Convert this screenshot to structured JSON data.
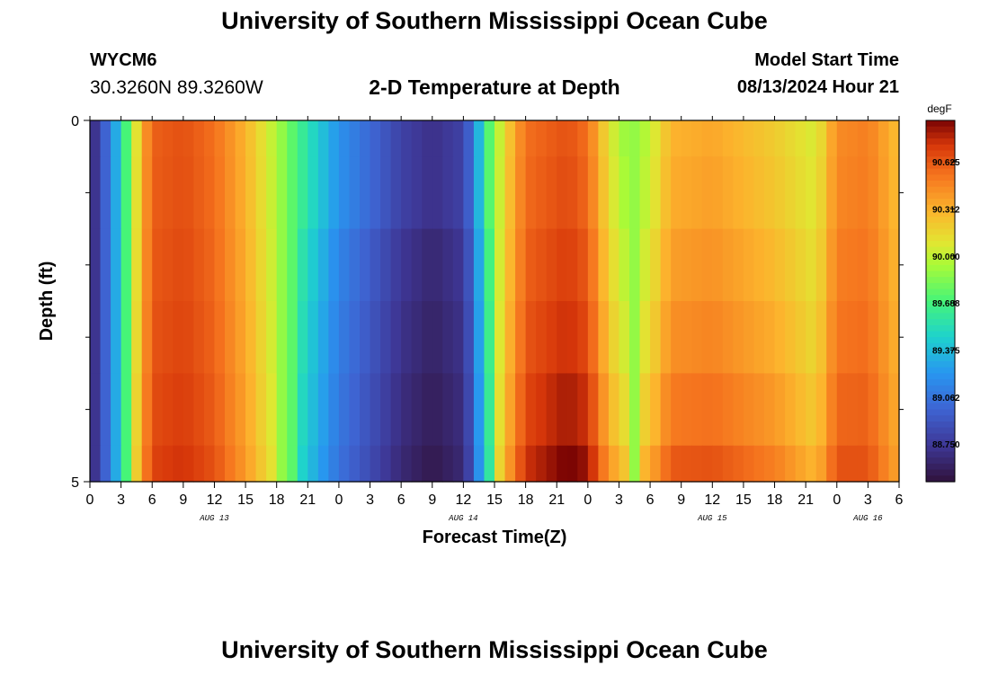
{
  "header": {
    "title": "University of Southern Mississippi Ocean Cube",
    "station_id": "WYCM6",
    "coords": "30.3260N  89.3260W",
    "plot_title": "2-D Temperature at Depth",
    "start_label": "Model Start Time",
    "start_value": "08/13/2024 Hour 21"
  },
  "footer": {
    "title": "University of Southern Mississippi Ocean Cube"
  },
  "chart_data": {
    "type": "heatmap",
    "xlabel": "Forecast Time(Z)",
    "ylabel": "Depth (ft)",
    "x_start_hour": 0,
    "x_end_hour": 78,
    "x_tick_step_hours": 3,
    "x_tick_labels": [
      "0",
      "3",
      "6",
      "9",
      "12",
      "15",
      "18",
      "21",
      "0",
      "3",
      "6",
      "9",
      "12",
      "15",
      "18",
      "21",
      "0",
      "3",
      "6",
      "9",
      "12",
      "15",
      "18",
      "21",
      "0",
      "3",
      "6"
    ],
    "day_labels": [
      {
        "hour": 12,
        "label": "AUG 13"
      },
      {
        "hour": 36,
        "label": "AUG 14"
      },
      {
        "hour": 60,
        "label": "AUG 15"
      },
      {
        "hour": 75,
        "label": "AUG 16"
      }
    ],
    "ylim": [
      0,
      5
    ],
    "y_tick_labels": [
      "0",
      "5"
    ],
    "y_minor_ticks": [
      1,
      2,
      3,
      4
    ],
    "depth_levels": [
      0,
      0.5,
      1.5,
      2.5,
      3.5,
      4.5
    ],
    "colorbar": {
      "unit": "degF",
      "min": 88.5,
      "max": 90.9,
      "ticks": [
        88.75,
        89.062,
        89.375,
        89.688,
        90.0,
        90.312,
        90.625
      ],
      "tick_labels": [
        "88.750",
        "89.062",
        "89.375",
        "89.688",
        "90.000",
        "90.312",
        "90.625"
      ]
    },
    "surface_profile": [
      {
        "h": 0,
        "v": 88.6
      },
      {
        "h": 2,
        "v": 89.1
      },
      {
        "h": 3,
        "v": 89.5
      },
      {
        "h": 4,
        "v": 89.9
      },
      {
        "h": 5,
        "v": 90.3
      },
      {
        "h": 6,
        "v": 90.6
      },
      {
        "h": 9,
        "v": 90.65
      },
      {
        "h": 12,
        "v": 90.55
      },
      {
        "h": 15,
        "v": 90.3
      },
      {
        "h": 18,
        "v": 89.95
      },
      {
        "h": 21,
        "v": 89.55
      },
      {
        "h": 24,
        "v": 89.2
      },
      {
        "h": 30,
        "v": 88.8
      },
      {
        "h": 33,
        "v": 88.7
      },
      {
        "h": 36,
        "v": 88.8
      },
      {
        "h": 37,
        "v": 89.1
      },
      {
        "h": 38,
        "v": 89.6
      },
      {
        "h": 40,
        "v": 90.15
      },
      {
        "h": 42,
        "v": 90.55
      },
      {
        "h": 46,
        "v": 90.65
      },
      {
        "h": 48,
        "v": 90.55
      },
      {
        "h": 50,
        "v": 90.1
      },
      {
        "h": 52,
        "v": 89.85
      },
      {
        "h": 54,
        "v": 90.0
      },
      {
        "h": 56,
        "v": 90.3
      },
      {
        "h": 60,
        "v": 90.35
      },
      {
        "h": 66,
        "v": 90.2
      },
      {
        "h": 70,
        "v": 90.05
      },
      {
        "h": 72,
        "v": 90.45
      },
      {
        "h": 75,
        "v": 90.5
      },
      {
        "h": 78,
        "v": 90.25
      }
    ],
    "depth_bias": [
      {
        "h": 0,
        "d": 0
      },
      {
        "h": 36,
        "d": 0
      },
      {
        "h": 42,
        "d": 0.05
      },
      {
        "h": 48,
        "d": 0.1
      },
      {
        "h": 54,
        "d": 0.12
      },
      {
        "h": 60,
        "d": 0.1
      },
      {
        "h": 66,
        "d": 0.1
      },
      {
        "h": 72,
        "d": 0.05
      },
      {
        "h": 78,
        "d": 0
      }
    ],
    "bias_by_level": [
      0,
      0.02,
      0.06,
      0.1,
      0.16,
      0.24
    ],
    "cold_shift_by_level": [
      0,
      0,
      0.06,
      0.09,
      0.12,
      0.15
    ]
  }
}
